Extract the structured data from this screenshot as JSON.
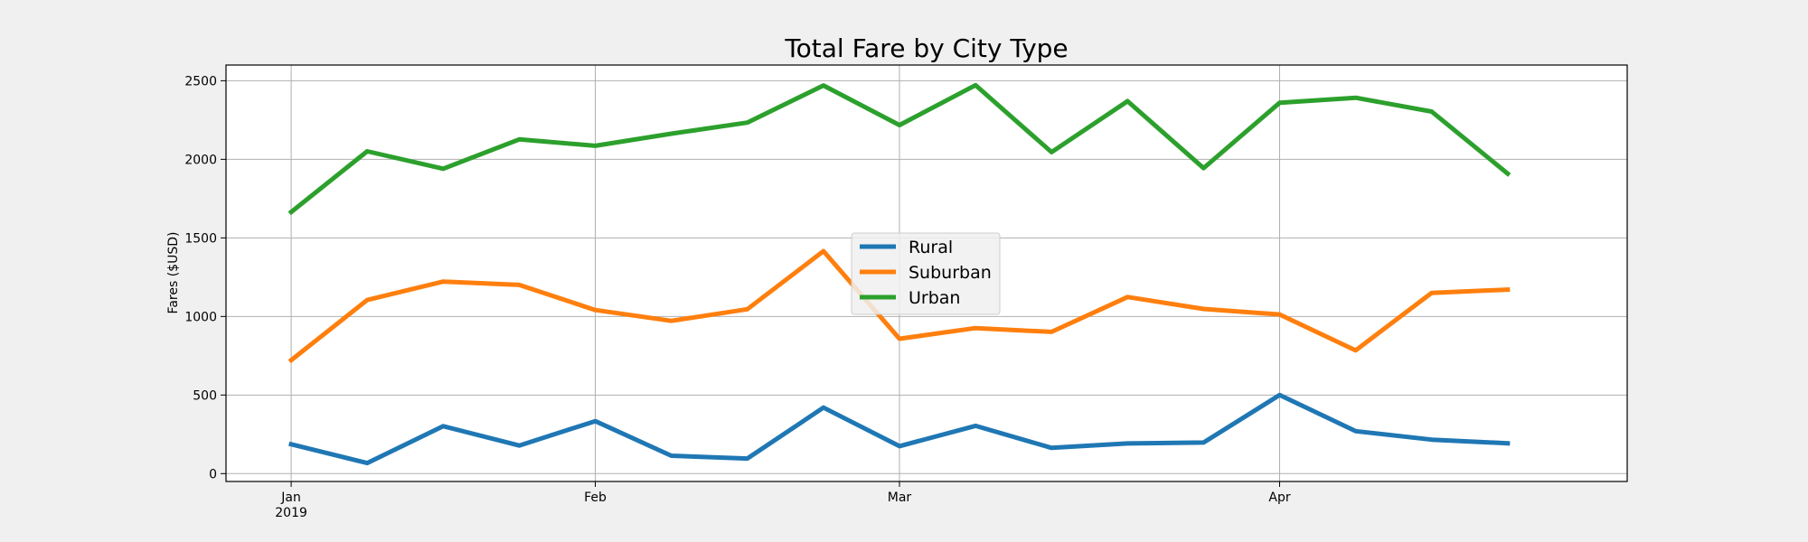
{
  "chart_data": {
    "type": "line",
    "title": "Total Fare by City Type",
    "xlabel": "",
    "ylabel": "Fares ($USD)",
    "x": [
      "2019-01-06",
      "2019-01-13",
      "2019-01-20",
      "2019-01-27",
      "2019-02-03",
      "2019-02-10",
      "2019-02-17",
      "2019-02-24",
      "2019-03-03",
      "2019-03-10",
      "2019-03-17",
      "2019-03-24",
      "2019-03-31",
      "2019-04-07",
      "2019-04-14",
      "2019-04-21",
      "2019-04-28"
    ],
    "x_ticks": [
      {
        "date": "2019-01-06",
        "label": "Jan",
        "sublabel": "2019"
      },
      {
        "date": "2019-02-03",
        "label": "Feb",
        "sublabel": ""
      },
      {
        "date": "2019-03-03",
        "label": "Mar",
        "sublabel": ""
      },
      {
        "date": "2019-04-07",
        "label": "Apr",
        "sublabel": ""
      }
    ],
    "xlim": [
      "2018-12-31",
      "2019-05-09"
    ],
    "ylim": [
      -50,
      2600
    ],
    "y_ticks": [
      0,
      500,
      1000,
      1500,
      2000,
      2500
    ],
    "grid": true,
    "legend_position": "center",
    "series": [
      {
        "name": "Rural",
        "color": "#1f77b4",
        "values": [
          187,
          67,
          302,
          179,
          334,
          114,
          96,
          420,
          175,
          304,
          164,
          192,
          198,
          500,
          270,
          216,
          193
        ]
      },
      {
        "name": "Suburban",
        "color": "#ff7f0e",
        "values": [
          722,
          1105,
          1222,
          1201,
          1041,
          972,
          1046,
          1416,
          858,
          926,
          902,
          1124,
          1048,
          1013,
          784,
          1150,
          1171
        ]
      },
      {
        "name": "Urban",
        "color": "#2ca02c",
        "values": [
          1665,
          2051,
          1940,
          2127,
          2086,
          2163,
          2234,
          2470,
          2218,
          2472,
          2046,
          2370,
          1944,
          2360,
          2392,
          2304,
          1909
        ]
      }
    ]
  }
}
